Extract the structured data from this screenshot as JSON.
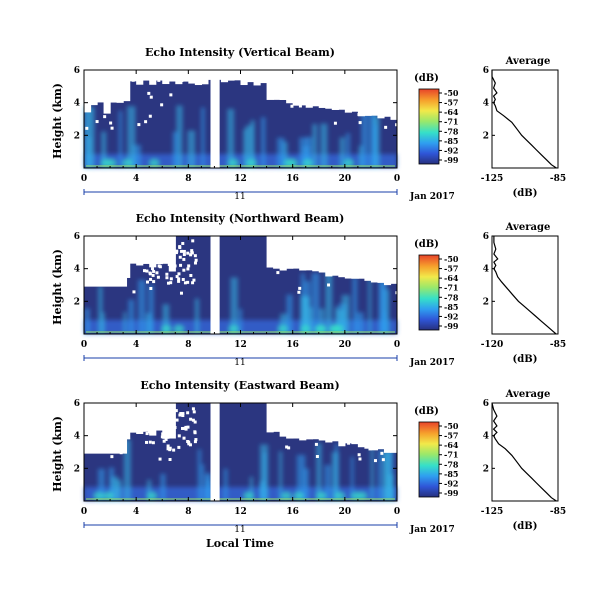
{
  "figure": {
    "x_axis_label": "Local Time",
    "date_label": "Jan 2017",
    "day_label": "11",
    "colorbar_unit": "(dB)",
    "average_title": "Average",
    "average_xlabel": "(dB)",
    "ylabel": "Height (km)",
    "colorbar_ticks": [
      "-50",
      "-57",
      "-64",
      "-71",
      "-78",
      "-85",
      "-92",
      "-99"
    ],
    "colorbar_colors": [
      "#e8432a",
      "#f6a02c",
      "#f2e94a",
      "#9be86a",
      "#36e0c8",
      "#2f9ff0",
      "#2f56d8",
      "#27307e"
    ],
    "background_color": "#2b3680",
    "gap_hours": [
      9.7,
      10.4
    ]
  },
  "chart_data": [
    {
      "type": "heatmap",
      "title": "Echo Intensity (Vertical Beam)",
      "xlabel": "Local Time",
      "ylabel": "Height (km)",
      "x_ticks": [
        "0",
        "4",
        "8",
        "12",
        "16",
        "20",
        "0"
      ],
      "y_ticks": [
        "2",
        "4",
        "6"
      ],
      "xlim": [
        0,
        24
      ],
      "ylim": [
        0,
        6
      ],
      "colorbar": {
        "label": "(dB)",
        "ticks": [
          -50,
          -57,
          -64,
          -71,
          -78,
          -85,
          -92,
          -99
        ]
      },
      "average_profile": {
        "title": "Average",
        "xlabel": "(dB)",
        "x_ticks": [
          "-125",
          "-85"
        ],
        "y_ticks": [
          "2",
          "4",
          "6"
        ],
        "xlim": [
          -125,
          -85
        ],
        "ylim": [
          0,
          6
        ],
        "values_db": [
          -86,
          -89,
          -92,
          -95,
          -98,
          -101,
          -104,
          -107,
          -110,
          -113,
          -118,
          -122,
          -123,
          -124,
          -123,
          -124,
          -122,
          -124,
          -123,
          -125,
          -125
        ],
        "heights_km": [
          0.0,
          0.2,
          0.5,
          0.8,
          1.1,
          1.4,
          1.7,
          2.0,
          2.4,
          2.8,
          3.2,
          3.5,
          3.8,
          4.0,
          4.2,
          4.4,
          4.6,
          4.9,
          5.2,
          5.6,
          6.0
        ]
      }
    },
    {
      "type": "heatmap",
      "title": "Echo Intensity (Northward Beam)",
      "xlabel": "Local Time",
      "ylabel": "Height (km)",
      "x_ticks": [
        "0",
        "4",
        "8",
        "12",
        "16",
        "20",
        "0"
      ],
      "y_ticks": [
        "2",
        "4",
        "6"
      ],
      "xlim": [
        0,
        24
      ],
      "ylim": [
        0,
        6
      ],
      "colorbar": {
        "label": "(dB)",
        "ticks": [
          -50,
          -57,
          -64,
          -71,
          -78,
          -85,
          -92,
          -99
        ]
      },
      "average_profile": {
        "title": "Average",
        "xlabel": "(dB)",
        "x_ticks": [
          "-120",
          "-85"
        ],
        "y_ticks": [
          "2",
          "4",
          "6"
        ],
        "xlim": [
          -120,
          -85
        ],
        "ylim": [
          0,
          6
        ],
        "values_db": [
          -86,
          -88,
          -91,
          -94,
          -97,
          -100,
          -103,
          -106,
          -109,
          -112,
          -115,
          -117,
          -118,
          -119,
          -118,
          -119,
          -117,
          -119,
          -118,
          -119,
          -119
        ],
        "heights_km": [
          0.0,
          0.2,
          0.5,
          0.8,
          1.1,
          1.4,
          1.7,
          2.0,
          2.4,
          2.8,
          3.2,
          3.5,
          3.8,
          4.0,
          4.2,
          4.4,
          4.6,
          4.9,
          5.2,
          5.6,
          6.0
        ]
      }
    },
    {
      "type": "heatmap",
      "title": "Echo Intensity (Eastward Beam)",
      "xlabel": "Local Time",
      "ylabel": "Height (km)",
      "x_ticks": [
        "0",
        "4",
        "8",
        "12",
        "16",
        "20",
        "0"
      ],
      "y_ticks": [
        "2",
        "4",
        "6"
      ],
      "xlim": [
        0,
        24
      ],
      "ylim": [
        0,
        6
      ],
      "colorbar": {
        "label": "(dB)",
        "ticks": [
          -50,
          -57,
          -64,
          -71,
          -78,
          -85,
          -92,
          -99
        ]
      },
      "average_profile": {
        "title": "Average",
        "xlabel": "(dB)",
        "x_ticks": [
          "-125",
          "-85"
        ],
        "y_ticks": [
          "2",
          "4",
          "6"
        ],
        "xlim": [
          -125,
          -85
        ],
        "ylim": [
          0,
          6
        ],
        "values_db": [
          -86,
          -89,
          -92,
          -95,
          -98,
          -101,
          -104,
          -107,
          -110,
          -113,
          -117,
          -121,
          -123,
          -124,
          -122,
          -124,
          -122,
          -124,
          -122,
          -124,
          -125
        ],
        "heights_km": [
          0.0,
          0.2,
          0.5,
          0.8,
          1.1,
          1.4,
          1.7,
          2.0,
          2.4,
          2.8,
          3.2,
          3.5,
          3.8,
          4.0,
          4.2,
          4.4,
          4.6,
          4.9,
          5.2,
          5.6,
          6.0
        ]
      }
    }
  ]
}
